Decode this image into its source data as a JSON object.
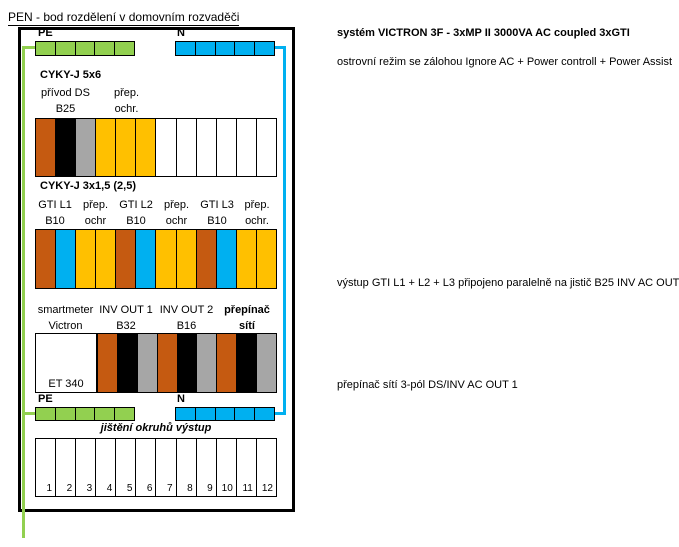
{
  "colors": {
    "green": "#92D050",
    "blue": "#00B0F0",
    "brown": "#C55A11",
    "black": "#000000",
    "gray": "#A6A6A6",
    "amber": "#FFC000",
    "white": "#FFFFFF",
    "lightblue": "#BDD7EE"
  },
  "title": "PEN - bod rozdělení v domovním rozvaděči",
  "panel": {
    "top_bus": {
      "pe_label": "PE",
      "n_label": "N",
      "pe_cells": [
        "green",
        "green",
        "green",
        "green",
        "green"
      ],
      "n_cells": [
        "blue",
        "blue",
        "blue",
        "blue",
        "blue"
      ]
    },
    "row1": {
      "cable": "CYKY-J 5x6",
      "cols": [
        {
          "top": "přívod DS",
          "bottom": "B25"
        },
        {
          "top": "přep.",
          "bottom": "ochr."
        }
      ],
      "cells": [
        "brown",
        "black",
        "gray",
        "amber",
        "amber",
        "amber",
        "white",
        "white",
        "white",
        "white",
        "white",
        "white"
      ]
    },
    "row2": {
      "cable": "CYKY-J 3x1,5 (2,5)",
      "cols": [
        {
          "top": "GTI L1",
          "bottom": "B10"
        },
        {
          "top": "přep.",
          "bottom": "ochr"
        },
        {
          "top": "GTI L2",
          "bottom": "B10"
        },
        {
          "top": "přep.",
          "bottom": "ochr"
        },
        {
          "top": "GTI L3",
          "bottom": "B10"
        },
        {
          "top": "přep.",
          "bottom": "ochr."
        }
      ],
      "cells": [
        "brown",
        "blue",
        "amber",
        "amber",
        "brown",
        "blue",
        "amber",
        "amber",
        "brown",
        "blue",
        "amber",
        "amber"
      ]
    },
    "row3": {
      "cols": [
        {
          "top": "smartmeter",
          "bottom": "Victron"
        },
        {
          "top": "INV OUT 1",
          "bottom": "B32"
        },
        {
          "top": "INV OUT 2",
          "bottom": "B16"
        },
        {
          "top": "přepínač",
          "bottom": "sítí"
        }
      ],
      "meter_label": "ET 340",
      "cells": [
        "brown",
        "black",
        "gray",
        "brown",
        "black",
        "gray",
        "brown",
        "black",
        "gray"
      ]
    },
    "bottom_bus": {
      "pe_label": "PE",
      "n_label": "N",
      "pe_cells": [
        "green",
        "green",
        "green",
        "green",
        "green"
      ],
      "n_cells": [
        "blue",
        "blue",
        "blue",
        "blue",
        "blue"
      ]
    },
    "outputs": {
      "title": "jištění okruhů výstup",
      "numbers": [
        "1",
        "2",
        "3",
        "4",
        "5",
        "6",
        "7",
        "8",
        "9",
        "10",
        "11",
        "12"
      ]
    }
  },
  "annotations": [
    {
      "text": "systém VICTRON 3F - 3xMP II 3000VA AC coupled 3xGTI",
      "bold": true
    },
    {
      "text": "ostrovní režim se zálohou Ignore AC + Power controll + Power Assist",
      "bold": false
    },
    {
      "text": "výstup GTI L1 + L2 + L3 připojeno paralelně na jistič B25 INV AC OUT 1",
      "bold": false
    },
    {
      "text": "přepínač sítí 3-pól DS/INV AC OUT 1",
      "bold": false
    }
  ]
}
